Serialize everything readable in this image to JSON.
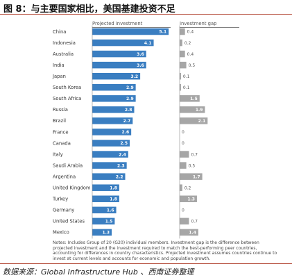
{
  "figure_title": "图 8：与主要国家相比，美国基建投资不足",
  "notes": "Notes: Includes Group of 20 (G20) individual members. Investment gap is the difference between projected investment and the investment required to match the best-performing peer countries, accounting for differences in country characteristics. Projected investment assumes countries continue to invest at current levels and accounts for economic and population growth.",
  "source": "数据来源：Global Infrastructure Hub 、西南证券整理",
  "colors": {
    "projected": "#3a7ec1",
    "gap": "#a6a6a6",
    "accent": "#b44a38"
  },
  "chart_data": {
    "type": "bar",
    "orientation": "horizontal",
    "categories": [
      "China",
      "Indonesia",
      "Australia",
      "India",
      "Japan",
      "South Korea",
      "South Africa",
      "Russia",
      "Brazil",
      "France",
      "Canada",
      "Italy",
      "Saudi Arabia",
      "Argentina",
      "United Kingdom",
      "Turkey",
      "Germany",
      "United States",
      "Mexico"
    ],
    "series": [
      {
        "name": "Projected investment",
        "values": [
          5.1,
          4.1,
          3.6,
          3.6,
          3.2,
          2.9,
          2.9,
          2.8,
          2.7,
          2.6,
          2.5,
          2.4,
          2.3,
          2.2,
          1.8,
          1.8,
          1.6,
          1.5,
          1.3
        ]
      },
      {
        "name": "Investment gap",
        "values": [
          0.4,
          0.2,
          0.4,
          0.5,
          0.1,
          0.1,
          1.5,
          1.9,
          2.1,
          0,
          0,
          0.7,
          0.5,
          1.7,
          0.2,
          1.3,
          0,
          0.7,
          1.4
        ]
      }
    ]
  }
}
